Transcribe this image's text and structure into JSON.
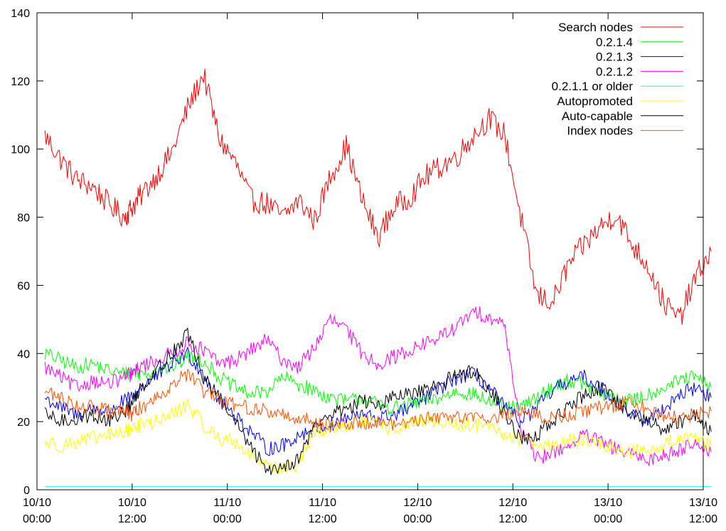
{
  "chart_data": {
    "type": "line",
    "title": "",
    "xlabel": "",
    "ylabel": "",
    "ylim": [
      0,
      140
    ],
    "yticks": [
      0,
      20,
      40,
      60,
      80,
      100,
      120,
      140
    ],
    "xlim": [
      "2010-10-10 00:00",
      "2010-10-13 12:00"
    ],
    "xticks": [
      {
        "line1": "10/10",
        "line2": "00:00"
      },
      {
        "line1": "10/10",
        "line2": "12:00"
      },
      {
        "line1": "11/10",
        "line2": "00:00"
      },
      {
        "line1": "11/10",
        "line2": "12:00"
      },
      {
        "line1": "12/10",
        "line2": "00:00"
      },
      {
        "line1": "12/10",
        "line2": "12:00"
      },
      {
        "line1": "13/10",
        "line2": "00:00"
      },
      {
        "line1": "13/10",
        "line2": "12:00"
      }
    ],
    "legend_position": "top-right",
    "grid": false,
    "x_hours": [
      1,
      3,
      5,
      7,
      9,
      11,
      12,
      13,
      15,
      17,
      19,
      21,
      23,
      25,
      27,
      29,
      31,
      33,
      35,
      37,
      39,
      41,
      43,
      45,
      47,
      49,
      51,
      53,
      55,
      57,
      59,
      61,
      63,
      65,
      67,
      69,
      71,
      73,
      75,
      77,
      79,
      81,
      83,
      85
    ],
    "series": [
      {
        "name": "Search nodes",
        "color": "#ff0000",
        "values": [
          104,
          97,
          91,
          89,
          84,
          80,
          83,
          86,
          92,
          99,
          112,
          122,
          103,
          96,
          85,
          84,
          80,
          85,
          79,
          92,
          101,
          85,
          74,
          83,
          86,
          92,
          95,
          98,
          104,
          109,
          104,
          80,
          57,
          55,
          66,
          72,
          77,
          81,
          72,
          66,
          55,
          50,
          62,
          70
        ]
      },
      {
        "name": "0.2.1.4",
        "color": "#00ff00",
        "values": [
          40,
          38,
          36,
          37,
          35,
          34,
          35,
          34,
          35,
          36,
          39,
          38,
          33,
          30,
          28,
          29,
          33,
          31,
          29,
          27,
          26,
          27,
          25,
          24,
          25,
          26,
          27,
          29,
          28,
          26,
          24,
          24,
          27,
          30,
          32,
          31,
          28,
          27,
          26,
          28,
          30,
          32,
          33,
          30
        ]
      },
      {
        "name": "0.2.1.3",
        "color": "#0000ff",
        "values": [
          27,
          24,
          22,
          24,
          23,
          26,
          27,
          30,
          33,
          37,
          40,
          34,
          26,
          22,
          17,
          12,
          13,
          16,
          18,
          19,
          21,
          22,
          21,
          22,
          24,
          27,
          30,
          33,
          34,
          30,
          24,
          20,
          24,
          29,
          32,
          33,
          30,
          26,
          22,
          20,
          24,
          28,
          30,
          27
        ]
      },
      {
        "name": "0.2.1.2",
        "color": "#ff00ff",
        "values": [
          36,
          33,
          30,
          32,
          31,
          33,
          34,
          36,
          38,
          40,
          43,
          41,
          37,
          38,
          41,
          44,
          38,
          36,
          42,
          50,
          47,
          40,
          37,
          39,
          41,
          43,
          45,
          48,
          52,
          51,
          48,
          18,
          9,
          11,
          13,
          16,
          14,
          12,
          10,
          9,
          10,
          12,
          14,
          11
        ]
      },
      {
        "name": "0.2.1.1 or older",
        "color": "#00ffff",
        "values": [
          1,
          1,
          1,
          1,
          1,
          1,
          1,
          1,
          1,
          1,
          1,
          1,
          1,
          1,
          1,
          1,
          1,
          1,
          1,
          1,
          1,
          1,
          1,
          1,
          1,
          1,
          1,
          1,
          1,
          1,
          1,
          1,
          1,
          1,
          1,
          1,
          1,
          1,
          1,
          1,
          1,
          1,
          1,
          1
        ]
      },
      {
        "name": "Autopromoted",
        "color": "#ffff00",
        "values": [
          14,
          13,
          14,
          15,
          16,
          17,
          18,
          19,
          20,
          22,
          25,
          19,
          15,
          14,
          10,
          8,
          6,
          7,
          17,
          18,
          19,
          20,
          19,
          18,
          19,
          20,
          20,
          19,
          19,
          18,
          16,
          15,
          14,
          13,
          14,
          15,
          13,
          12,
          11,
          12,
          13,
          15,
          16,
          13
        ]
      },
      {
        "name": "Auto-capable",
        "color": "#000000",
        "values": [
          22,
          20,
          21,
          22,
          20,
          23,
          25,
          30,
          35,
          40,
          46,
          33,
          27,
          20,
          12,
          6,
          7,
          9,
          19,
          22,
          24,
          26,
          25,
          27,
          28,
          29,
          31,
          34,
          35,
          30,
          22,
          15,
          16,
          20,
          24,
          28,
          30,
          26,
          22,
          20,
          18,
          20,
          22,
          17
        ]
      },
      {
        "name": "Index nodes",
        "color": "#ff5000",
        "values": [
          29,
          27,
          25,
          24,
          23,
          23,
          22,
          24,
          27,
          31,
          34,
          29,
          26,
          25,
          24,
          23,
          22,
          21,
          20,
          19,
          19,
          20,
          20,
          19,
          20,
          21,
          21,
          22,
          21,
          21,
          22,
          23,
          22,
          21,
          22,
          23,
          24,
          25,
          26,
          24,
          22,
          21,
          22,
          23
        ]
      }
    ]
  }
}
